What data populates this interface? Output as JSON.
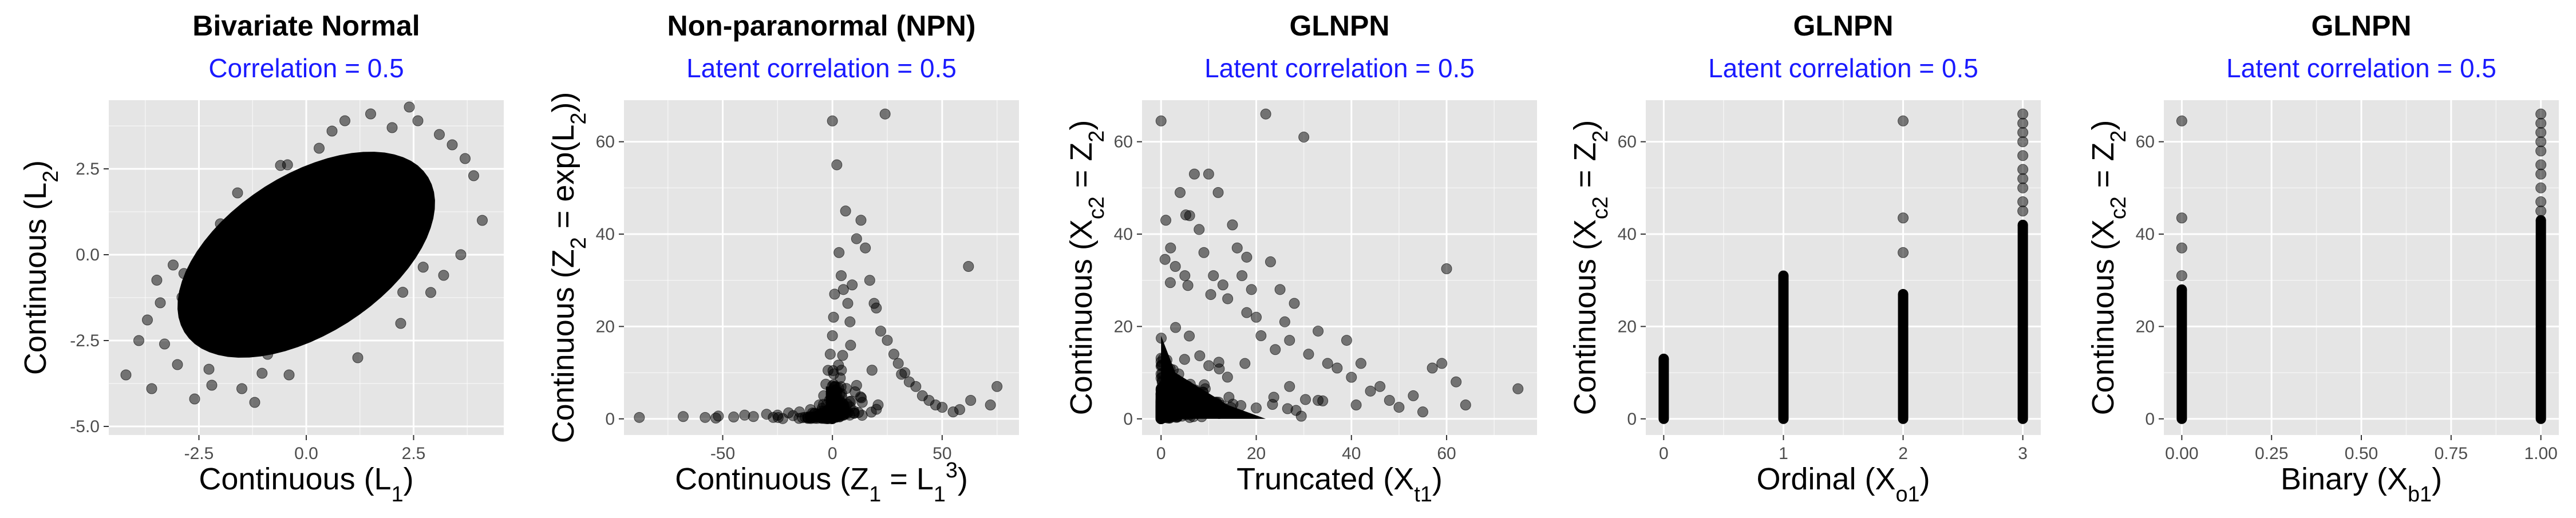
{
  "chart_data": [
    {
      "type": "scatter",
      "title": "Bivariate Normal",
      "subtitle": "Correlation = 0.5",
      "xlabel": {
        "main": "Continuous (L",
        "sub": "1",
        "sup": "",
        "tail": ")"
      },
      "ylabel": {
        "parts": [
          {
            "t": "Continuous (L"
          },
          {
            "t": "2",
            "s": "sub"
          },
          {
            "t": ")"
          }
        ]
      },
      "xlim": [
        -4.6,
        4.6
      ],
      "ylim": [
        -5.25,
        4.5
      ],
      "xticks": [
        -2.5,
        0,
        2.5
      ],
      "xtick_labels": [
        "-2.5",
        "0.0",
        "2.5"
      ],
      "yticks": [
        -5,
        -2.5,
        0,
        2.5
      ],
      "ytick_labels": [
        "-5.0",
        "-2.5",
        "0.0",
        "2.5"
      ],
      "grid": true,
      "point_color": "#000000",
      "bulk": {
        "kind": "ellipse",
        "cx": 0,
        "cy": 0,
        "sd": 1,
        "corr": 0.5,
        "extent_sd": 3.0
      },
      "outliers": [
        [
          -4.2,
          -3.5
        ],
        [
          -3.6,
          -3.9
        ],
        [
          -3.3,
          -2.6
        ],
        [
          -3.0,
          -3.2
        ],
        [
          -2.6,
          -4.2
        ],
        [
          -3.4,
          -1.4
        ],
        [
          -3.9,
          -2.5
        ],
        [
          -2.2,
          -3.8
        ],
        [
          -1.5,
          -3.9
        ],
        [
          -3.1,
          -0.3
        ],
        [
          -1.2,
          -4.3
        ],
        [
          -2.0,
          0.9
        ],
        [
          -3.7,
          -1.9
        ],
        [
          -0.4,
          -3.5
        ],
        [
          -1.6,
          1.8
        ],
        [
          -0.6,
          2.6
        ],
        [
          0.6,
          3.6
        ],
        [
          0.9,
          3.9
        ],
        [
          1.5,
          4.1
        ],
        [
          2.0,
          3.7
        ],
        [
          2.6,
          3.9
        ],
        [
          3.1,
          3.5
        ],
        [
          3.4,
          3.2
        ],
        [
          3.9,
          2.3
        ],
        [
          4.1,
          1.0
        ],
        [
          3.6,
          0.0
        ],
        [
          2.9,
          -1.1
        ],
        [
          2.2,
          -2.0
        ],
        [
          1.2,
          -3.0
        ],
        [
          3.7,
          2.8
        ],
        [
          0.3,
          3.1
        ],
        [
          -0.9,
          -2.9
        ],
        [
          2.4,
          4.3
        ],
        [
          3.2,
          -0.6
        ]
      ]
    },
    {
      "type": "scatter",
      "title": "Non-paranormal (NPN)",
      "subtitle": "Latent correlation = 0.5",
      "xlabel": {
        "parts": [
          {
            "t": "Continuous (Z"
          },
          {
            "t": "1",
            "s": "sub"
          },
          {
            "t": " = L"
          },
          {
            "t": "1",
            "s": "sub"
          },
          {
            "t": "3",
            "s": "sup"
          },
          {
            "t": ")"
          }
        ]
      },
      "ylabel": {
        "parts": [
          {
            "t": "Continuous (Z"
          },
          {
            "t": "2",
            "s": "sub"
          },
          {
            "t": " = exp(L"
          },
          {
            "t": "2",
            "s": "sub"
          },
          {
            "t": "))"
          }
        ]
      },
      "xlim": [
        -95,
        85
      ],
      "ylim": [
        -3.5,
        69
      ],
      "xticks": [
        -50,
        0,
        50
      ],
      "xtick_labels": [
        "-50",
        "0",
        "50"
      ],
      "yticks": [
        0,
        20,
        40,
        60
      ],
      "ytick_labels": [
        "0",
        "20",
        "40",
        "60"
      ],
      "grid": true,
      "point_color": "#000000",
      "outliers": [
        [
          -88,
          0.3
        ],
        [
          -68,
          0.5
        ],
        [
          -58,
          0.3
        ],
        [
          -52,
          0.6
        ],
        [
          -45,
          0.4
        ],
        [
          -40,
          0.8
        ],
        [
          -36,
          0.5
        ],
        [
          -30,
          1.0
        ],
        [
          -25,
          0.8
        ],
        [
          -20,
          1.3
        ],
        [
          -15,
          1.5
        ],
        [
          -10,
          2.0
        ],
        [
          -6,
          3.0
        ],
        [
          -4,
          5.0
        ],
        [
          -3,
          7.5
        ],
        [
          -2,
          10.5
        ],
        [
          -1,
          14
        ],
        [
          0,
          18
        ],
        [
          0.5,
          22
        ],
        [
          1,
          27
        ],
        [
          0,
          64.5
        ],
        [
          3,
          36
        ],
        [
          4,
          31
        ],
        [
          5,
          28
        ],
        [
          7,
          25
        ],
        [
          8,
          21
        ],
        [
          11,
          39
        ],
        [
          13,
          43
        ],
        [
          15,
          37
        ],
        [
          17,
          30
        ],
        [
          19,
          25
        ],
        [
          20,
          24
        ],
        [
          22,
          19
        ],
        [
          25,
          17
        ],
        [
          24,
          66
        ],
        [
          28,
          14
        ],
        [
          30,
          12
        ],
        [
          33,
          10
        ],
        [
          35,
          8
        ],
        [
          38,
          7
        ],
        [
          41,
          5
        ],
        [
          44,
          4
        ],
        [
          47,
          3
        ],
        [
          50,
          2.5
        ],
        [
          55,
          1.5
        ],
        [
          58,
          2.0
        ],
        [
          63,
          4.0
        ],
        [
          72,
          3.0
        ],
        [
          75,
          7.0
        ],
        [
          62,
          33
        ],
        [
          9,
          29
        ],
        [
          6,
          45
        ],
        [
          2,
          55
        ]
      ],
      "bulk_zero": {
        "kind": "npn"
      }
    },
    {
      "type": "scatter",
      "title": "GLNPN",
      "subtitle": "Latent correlation = 0.5",
      "xlabel": {
        "parts": [
          {
            "t": "Truncated (X"
          },
          {
            "t": "t1",
            "s": "sub"
          },
          {
            "t": ")"
          }
        ]
      },
      "ylabel": {
        "parts": [
          {
            "t": "Continuous (X"
          },
          {
            "t": "c2",
            "s": "sub"
          },
          {
            "t": " = Z"
          },
          {
            "t": "2",
            "s": "sub"
          },
          {
            "t": ")"
          }
        ]
      },
      "xlim": [
        -4,
        79
      ],
      "ylim": [
        -3.5,
        69
      ],
      "xticks": [
        0,
        20,
        40,
        60
      ],
      "xtick_labels": [
        "0",
        "20",
        "40",
        "60"
      ],
      "yticks": [
        0,
        20,
        40,
        60
      ],
      "ytick_labels": [
        "0",
        "20",
        "40",
        "60"
      ],
      "grid": true,
      "point_color": "#000000",
      "outliers": [
        [
          0,
          64.5
        ],
        [
          1,
          43
        ],
        [
          2,
          37
        ],
        [
          3,
          33
        ],
        [
          4,
          49
        ],
        [
          5,
          31
        ],
        [
          6,
          44
        ],
        [
          7,
          53
        ],
        [
          8,
          41
        ],
        [
          9,
          36
        ],
        [
          10,
          53
        ],
        [
          11,
          31
        ],
        [
          12,
          49
        ],
        [
          13,
          29
        ],
        [
          14,
          26
        ],
        [
          15,
          42
        ],
        [
          16,
          37
        ],
        [
          17,
          31
        ],
        [
          18,
          23
        ],
        [
          19,
          28
        ],
        [
          20,
          22
        ],
        [
          21,
          18
        ],
        [
          22,
          66
        ],
        [
          23,
          34
        ],
        [
          24,
          15
        ],
        [
          25,
          28
        ],
        [
          26,
          21
        ],
        [
          27,
          17
        ],
        [
          28,
          25
        ],
        [
          30,
          61
        ],
        [
          31,
          14
        ],
        [
          33,
          19
        ],
        [
          35,
          12
        ],
        [
          37,
          11
        ],
        [
          39,
          17
        ],
        [
          40,
          9
        ],
        [
          42,
          12
        ],
        [
          44,
          6
        ],
        [
          46,
          7
        ],
        [
          48,
          4
        ],
        [
          50,
          2.5
        ],
        [
          53,
          5
        ],
        [
          55,
          1.5
        ],
        [
          57,
          11
        ],
        [
          59,
          12
        ],
        [
          60,
          32.5
        ],
        [
          62,
          8
        ],
        [
          64,
          3
        ],
        [
          75,
          6.5
        ],
        [
          18,
          35
        ],
        [
          27,
          7
        ],
        [
          33,
          4
        ],
        [
          41,
          3
        ]
      ],
      "bulk_zero": {
        "kind": "trunc"
      }
    },
    {
      "type": "scatter",
      "title": "GLNPN",
      "subtitle": "Latent correlation = 0.5",
      "xlabel": {
        "parts": [
          {
            "t": "Ordinal (X"
          },
          {
            "t": "o1",
            "s": "sub"
          },
          {
            "t": ")"
          }
        ]
      },
      "ylabel": {
        "parts": [
          {
            "t": "Continuous (X"
          },
          {
            "t": "c2",
            "s": "sub"
          },
          {
            "t": " = Z"
          },
          {
            "t": "2",
            "s": "sub"
          },
          {
            "t": ")"
          }
        ]
      },
      "xlim": [
        -0.15,
        3.15
      ],
      "ylim": [
        -3.5,
        69
      ],
      "xticks": [
        0,
        1,
        2,
        3
      ],
      "xtick_labels": [
        "0",
        "1",
        "2",
        "3"
      ],
      "yticks": [
        0,
        20,
        40,
        60
      ],
      "ytick_labels": [
        "0",
        "20",
        "40",
        "60"
      ],
      "grid": true,
      "point_color": "#000000",
      "columns": [
        {
          "x": 0,
          "max": 13,
          "extra": []
        },
        {
          "x": 1,
          "max": 31,
          "extra": []
        },
        {
          "x": 2,
          "max": 27,
          "extra": [
            36,
            43.5,
            64.5
          ]
        },
        {
          "x": 3,
          "max": 42,
          "extra": [
            45,
            47,
            50,
            52,
            54,
            57,
            60,
            62,
            64,
            66
          ]
        }
      ]
    },
    {
      "type": "scatter",
      "title": "GLNPN",
      "subtitle": "Latent correlation = 0.5",
      "xlabel": {
        "parts": [
          {
            "t": "Binary (X"
          },
          {
            "t": "b1",
            "s": "sub"
          },
          {
            "t": ")"
          }
        ]
      },
      "ylabel": {
        "parts": [
          {
            "t": "Continuous (X"
          },
          {
            "t": "c2",
            "s": "sub"
          },
          {
            "t": " = Z"
          },
          {
            "t": "2",
            "s": "sub"
          },
          {
            "t": ")"
          }
        ]
      },
      "xlim": [
        -0.05,
        1.05
      ],
      "ylim": [
        -3.5,
        69
      ],
      "xticks": [
        0,
        0.25,
        0.5,
        0.75,
        1
      ],
      "xtick_labels": [
        "0.00",
        "0.25",
        "0.50",
        "0.75",
        "1.00"
      ],
      "yticks": [
        0,
        20,
        40,
        60
      ],
      "ytick_labels": [
        "0",
        "20",
        "40",
        "60"
      ],
      "grid": true,
      "point_color": "#000000",
      "columns": [
        {
          "x": 0,
          "max": 28,
          "extra": [
            31,
            37,
            43.5,
            64.5
          ]
        },
        {
          "x": 1,
          "max": 43,
          "extra": [
            45,
            47,
            50,
            53,
            55,
            58,
            60,
            62,
            64,
            66
          ]
        }
      ]
    }
  ],
  "colors": {
    "panel_background": "#e5e5e5",
    "grid_major": "#ffffff",
    "subtitle": "#1a1aff",
    "text": "#000000",
    "tick_text": "#4d4d4d"
  }
}
